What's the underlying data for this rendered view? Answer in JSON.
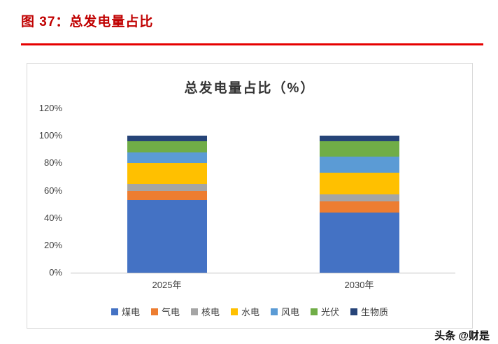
{
  "header": {
    "figure_label": "图 37：总发电量占比"
  },
  "watermark": "头条 @财是",
  "colors": {
    "header_red": "#C00000",
    "rule_red": "#E60000"
  },
  "chart_data": {
    "type": "bar",
    "stacked": true,
    "title": "总发电量占比（%）",
    "categories": [
      "2025年",
      "2030年"
    ],
    "series": [
      {
        "name": "煤电",
        "color": "#4472C4",
        "values": [
          53,
          44
        ]
      },
      {
        "name": "气电",
        "color": "#ED7D31",
        "values": [
          7,
          8
        ]
      },
      {
        "name": "核电",
        "color": "#A5A5A5",
        "values": [
          5,
          5
        ]
      },
      {
        "name": "水电",
        "color": "#FFC000",
        "values": [
          15,
          16
        ]
      },
      {
        "name": "风电",
        "color": "#5B9BD5",
        "values": [
          8,
          12
        ]
      },
      {
        "name": "光伏",
        "color": "#70AD47",
        "values": [
          8,
          11
        ]
      },
      {
        "name": "生物质",
        "color": "#264478",
        "values": [
          4,
          4
        ]
      }
    ],
    "xlabel": "",
    "ylabel": "",
    "ylim": [
      0,
      120
    ],
    "ytick_step": 20,
    "ytick_suffix": "%",
    "grid": false,
    "legend_position": "bottom"
  }
}
